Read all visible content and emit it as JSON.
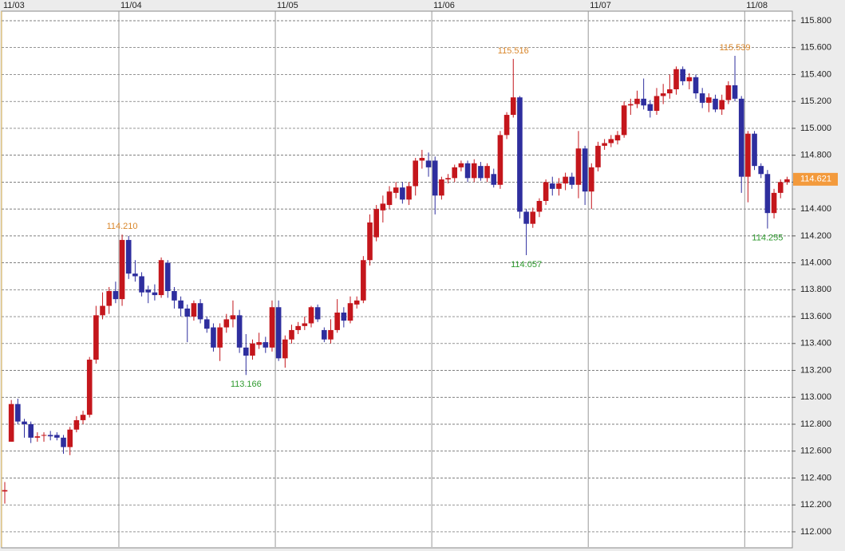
{
  "chart_data": {
    "type": "candlestick",
    "categories": [
      "11/03",
      null,
      null,
      null,
      null,
      null,
      null,
      null,
      null,
      null,
      null,
      null,
      null,
      null,
      null,
      null,
      null,
      null,
      "11/04",
      null,
      null,
      null,
      null,
      null,
      null,
      null,
      null,
      null,
      null,
      null,
      null,
      null,
      null,
      null,
      null,
      null,
      null,
      null,
      null,
      null,
      null,
      null,
      "11/05",
      null,
      null,
      null,
      null,
      null,
      null,
      null,
      null,
      null,
      null,
      null,
      null,
      null,
      null,
      null,
      null,
      null,
      null,
      null,
      null,
      null,
      null,
      null,
      "11/06",
      null,
      null,
      null,
      null,
      null,
      null,
      null,
      null,
      null,
      null,
      null,
      null,
      null,
      null,
      null,
      null,
      null,
      null,
      null,
      null,
      null,
      null,
      null,
      "11/07",
      null,
      null,
      null,
      null,
      null,
      null,
      null,
      null,
      null,
      null,
      null,
      null,
      null,
      null,
      null,
      null,
      null,
      null,
      null,
      null,
      null,
      null,
      null,
      "11/08",
      null,
      null,
      null,
      null,
      null,
      null
    ],
    "open": [
      112.3,
      112.67,
      112.95,
      112.82,
      112.8,
      112.7,
      112.72,
      112.72,
      112.72,
      112.7,
      112.63,
      112.76,
      112.83,
      112.87,
      113.28,
      113.61,
      113.68,
      113.79,
      113.73,
      114.17,
      113.92,
      113.9,
      113.8,
      113.78,
      113.76,
      114.0,
      113.79,
      113.72,
      113.66,
      113.6,
      113.7,
      113.58,
      113.52,
      113.37,
      113.52,
      113.58,
      113.61,
      113.37,
      113.31,
      113.39,
      113.41,
      113.37,
      113.67,
      113.29,
      113.43,
      113.5,
      113.53,
      113.55,
      113.67,
      113.5,
      113.43,
      113.5,
      113.63,
      113.57,
      113.69,
      113.72,
      114.02,
      114.19,
      114.39,
      114.43,
      114.52,
      114.56,
      114.47,
      114.57,
      114.76,
      114.76,
      114.76,
      114.5,
      114.62,
      114.63,
      114.71,
      114.74,
      114.63,
      114.72,
      114.63,
      114.66,
      114.58,
      114.95,
      115.1,
      115.23,
      114.38,
      114.29,
      114.38,
      114.46,
      114.59,
      114.55,
      114.59,
      114.64,
      114.58,
      114.85,
      114.53,
      114.71,
      114.87,
      114.89,
      114.91,
      114.95,
      115.17,
      115.18,
      115.22,
      115.18,
      115.13,
      115.24,
      115.26,
      115.29,
      115.44,
      115.35,
      115.38,
      115.26,
      115.19,
      115.22,
      115.14,
      115.21,
      115.32,
      115.22,
      114.64,
      114.96,
      114.72,
      114.66,
      114.37,
      114.52,
      114.6
    ],
    "high": [
      112.37,
      112.98,
      112.99,
      112.84,
      112.82,
      112.74,
      112.74,
      112.75,
      112.74,
      112.72,
      112.78,
      112.86,
      112.9,
      113.3,
      113.68,
      113.78,
      113.82,
      113.86,
      114.21,
      114.2,
      114.02,
      113.93,
      113.83,
      113.84,
      114.04,
      114.02,
      113.82,
      113.75,
      113.69,
      113.72,
      113.73,
      113.6,
      113.55,
      113.55,
      113.62,
      113.72,
      113.65,
      113.47,
      113.43,
      113.48,
      113.45,
      113.72,
      113.72,
      113.46,
      113.54,
      113.56,
      113.6,
      113.68,
      113.69,
      113.52,
      113.58,
      113.73,
      113.67,
      113.75,
      113.75,
      114.05,
      114.36,
      114.43,
      114.5,
      114.57,
      114.6,
      114.6,
      114.6,
      114.78,
      114.84,
      114.82,
      114.79,
      114.64,
      114.66,
      114.73,
      114.76,
      114.76,
      114.77,
      114.75,
      114.74,
      114.7,
      114.98,
      115.12,
      115.516,
      115.24,
      114.4,
      114.41,
      114.48,
      114.62,
      114.64,
      114.63,
      114.67,
      114.67,
      114.98,
      114.87,
      114.74,
      114.9,
      114.92,
      114.95,
      114.98,
      115.2,
      115.22,
      115.28,
      115.37,
      115.21,
      115.3,
      115.33,
      115.4,
      115.46,
      115.46,
      115.41,
      115.4,
      115.3,
      115.26,
      115.25,
      115.25,
      115.35,
      115.539,
      115.24,
      114.98,
      114.98,
      114.74,
      114.69,
      114.55,
      114.62,
      114.64
    ],
    "low": [
      112.21,
      112.67,
      112.8,
      112.7,
      112.66,
      112.67,
      112.67,
      112.68,
      112.68,
      112.58,
      112.57,
      112.74,
      112.8,
      112.85,
      113.25,
      113.58,
      113.62,
      113.7,
      113.68,
      113.88,
      113.86,
      113.75,
      113.7,
      113.72,
      113.74,
      113.74,
      113.66,
      113.6,
      113.41,
      113.57,
      113.55,
      113.48,
      113.34,
      113.27,
      113.48,
      113.52,
      113.33,
      113.166,
      113.28,
      113.36,
      113.33,
      113.34,
      113.27,
      113.22,
      113.4,
      113.47,
      113.5,
      113.52,
      113.56,
      113.41,
      113.4,
      113.48,
      113.52,
      113.55,
      113.66,
      113.7,
      113.98,
      114.16,
      114.3,
      114.4,
      114.48,
      114.44,
      114.43,
      114.5,
      114.7,
      114.64,
      114.36,
      114.47,
      114.59,
      114.6,
      114.68,
      114.6,
      114.6,
      114.61,
      114.6,
      114.56,
      114.55,
      114.92,
      115.08,
      114.33,
      114.057,
      114.26,
      114.34,
      114.43,
      114.5,
      114.5,
      114.54,
      114.55,
      114.48,
      114.43,
      114.4,
      114.68,
      114.84,
      114.86,
      114.88,
      114.93,
      115.1,
      115.15,
      115.14,
      115.08,
      115.1,
      115.18,
      115.22,
      115.25,
      115.32,
      115.29,
      115.22,
      115.15,
      115.12,
      115.12,
      115.1,
      115.18,
      115.2,
      114.52,
      114.45,
      114.69,
      114.63,
      114.255,
      114.33,
      114.48,
      114.58
    ],
    "close": [
      112.31,
      112.95,
      112.82,
      112.8,
      112.7,
      112.71,
      112.72,
      112.71,
      112.7,
      112.63,
      112.76,
      112.83,
      112.87,
      113.28,
      113.61,
      113.68,
      113.79,
      113.73,
      114.17,
      113.92,
      113.9,
      113.78,
      113.78,
      113.76,
      114.02,
      113.79,
      113.72,
      113.66,
      113.6,
      113.7,
      113.58,
      113.51,
      113.37,
      113.52,
      113.58,
      113.61,
      113.37,
      113.31,
      113.4,
      113.41,
      113.37,
      113.67,
      113.29,
      113.43,
      113.5,
      113.53,
      113.55,
      113.67,
      113.58,
      113.43,
      113.5,
      113.63,
      113.57,
      113.7,
      113.72,
      114.02,
      114.3,
      114.4,
      114.44,
      114.53,
      114.56,
      114.47,
      114.57,
      114.76,
      114.78,
      114.71,
      114.5,
      114.62,
      114.63,
      114.71,
      114.74,
      114.63,
      114.74,
      114.63,
      114.72,
      114.58,
      114.95,
      115.1,
      115.23,
      114.38,
      114.29,
      114.38,
      114.46,
      114.6,
      114.55,
      114.59,
      114.64,
      114.58,
      114.85,
      114.53,
      114.71,
      114.87,
      114.89,
      114.92,
      114.95,
      115.17,
      115.18,
      115.22,
      115.17,
      115.13,
      115.24,
      115.26,
      115.29,
      115.44,
      115.35,
      115.38,
      115.26,
      115.19,
      115.23,
      115.14,
      115.21,
      115.32,
      115.22,
      114.64,
      114.96,
      114.72,
      114.66,
      114.37,
      114.52,
      114.6,
      114.621
    ],
    "up_color": "#c4161c",
    "down_color": "#2e2e9e",
    "ylim": [
      111.887,
      115.871
    ],
    "yticks": [
      {
        "value": 112.0,
        "label": "112.000"
      },
      {
        "value": 112.2,
        "label": "112.200"
      },
      {
        "value": 112.4,
        "label": "112.400"
      },
      {
        "value": 112.6,
        "label": "112.600"
      },
      {
        "value": 112.8,
        "label": "112.800"
      },
      {
        "value": 113.0,
        "label": "113.000"
      },
      {
        "value": 113.2,
        "label": "113.200"
      },
      {
        "value": 113.4,
        "label": "113.400"
      },
      {
        "value": 113.6,
        "label": "113.600"
      },
      {
        "value": 113.8,
        "label": "113.800"
      },
      {
        "value": 114.0,
        "label": "114.000"
      },
      {
        "value": 114.2,
        "label": "114.200"
      },
      {
        "value": 114.4,
        "label": "114.400"
      },
      {
        "value": 114.6,
        "label": "114.600"
      },
      {
        "value": 114.8,
        "label": "114.800"
      },
      {
        "value": 115.0,
        "label": "115.000"
      },
      {
        "value": 115.2,
        "label": "115.200"
      },
      {
        "value": 115.4,
        "label": "115.400"
      },
      {
        "value": 115.6,
        "label": "115.600"
      },
      {
        "value": 115.8,
        "label": "115.800"
      }
    ],
    "grid": true,
    "annotations": [
      {
        "value": 114.21,
        "label": "114.210",
        "color": "#d9862a"
      },
      {
        "value": 113.166,
        "label": "113.166",
        "color": "#2e9a2e"
      },
      {
        "value": 115.516,
        "label": "115.516",
        "color": "#d9862a"
      },
      {
        "value": 114.057,
        "label": "114.057",
        "color": "#2e9a2e"
      },
      {
        "value": 115.539,
        "label": "115.539",
        "color": "#d9862a"
      },
      {
        "value": 114.255,
        "label": "114.255",
        "color": "#2e9a2e"
      }
    ],
    "last_price": {
      "value": 114.621,
      "label": "114.621",
      "color": "#f39a3c"
    }
  }
}
